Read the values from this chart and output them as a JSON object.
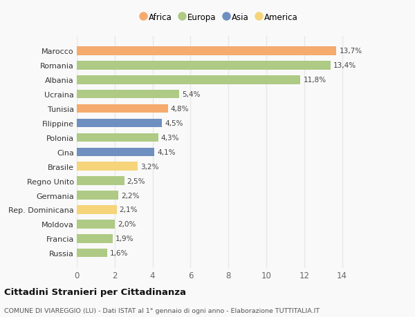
{
  "categories": [
    "Russia",
    "Francia",
    "Moldova",
    "Rep. Dominicana",
    "Germania",
    "Regno Unito",
    "Brasile",
    "Cina",
    "Polonia",
    "Filippine",
    "Tunisia",
    "Ucraina",
    "Albania",
    "Romania",
    "Marocco"
  ],
  "values": [
    1.6,
    1.9,
    2.0,
    2.1,
    2.2,
    2.5,
    3.2,
    4.1,
    4.3,
    4.5,
    4.8,
    5.4,
    11.8,
    13.4,
    13.7
  ],
  "labels": [
    "1,6%",
    "1,9%",
    "2,0%",
    "2,1%",
    "2,2%",
    "2,5%",
    "3,2%",
    "4,1%",
    "4,3%",
    "4,5%",
    "4,8%",
    "5,4%",
    "11,8%",
    "13,4%",
    "13,7%"
  ],
  "continents": [
    "Europa",
    "Europa",
    "Europa",
    "America",
    "Europa",
    "Europa",
    "America",
    "Asia",
    "Europa",
    "Asia",
    "Africa",
    "Europa",
    "Europa",
    "Europa",
    "Africa"
  ],
  "colors": {
    "Africa": "#F5AA6E",
    "Europa": "#AECA84",
    "Asia": "#6E8FBF",
    "America": "#F5D47A"
  },
  "legend_order": [
    "Africa",
    "Europa",
    "Asia",
    "America"
  ],
  "title": "Cittadini Stranieri per Cittadinanza",
  "subtitle": "COMUNE DI VIAREGGIO (LU) - Dati ISTAT al 1° gennaio di ogni anno - Elaborazione TUTTITALIA.IT",
  "xlim": [
    0,
    15
  ],
  "xticks": [
    0,
    2,
    4,
    6,
    8,
    10,
    12,
    14
  ],
  "background_color": "#f9f9f9",
  "grid_color": "#e8e8e8",
  "bar_height": 0.6
}
